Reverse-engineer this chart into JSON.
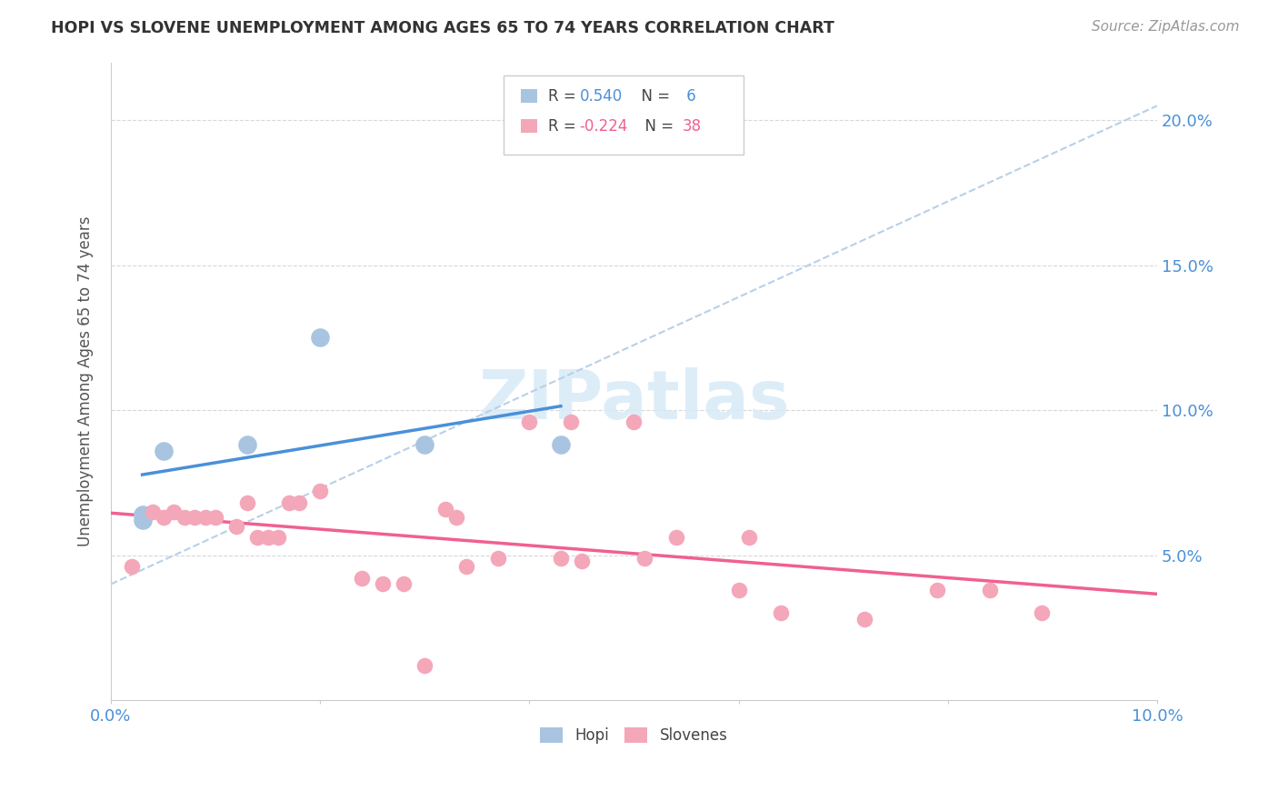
{
  "title": "HOPI VS SLOVENE UNEMPLOYMENT AMONG AGES 65 TO 74 YEARS CORRELATION CHART",
  "source": "Source: ZipAtlas.com",
  "ylabel": "Unemployment Among Ages 65 to 74 years",
  "xlim": [
    0.0,
    0.1
  ],
  "ylim": [
    0.0,
    0.22
  ],
  "x_ticks": [
    0.0,
    0.02,
    0.04,
    0.06,
    0.08,
    0.1
  ],
  "y_ticks": [
    0.0,
    0.05,
    0.1,
    0.15,
    0.2
  ],
  "hopi_color": "#a8c4e0",
  "hopi_edge_color": "#a8c4e0",
  "slovene_color": "#f4a7b9",
  "slovene_edge_color": "#f4a7b9",
  "hopi_line_color": "#4a90d9",
  "slovene_line_color": "#f06090",
  "dashed_line_color": "#b8d0e8",
  "watermark_color": "#d8eaf7",
  "background_color": "#ffffff",
  "grid_color": "#d8d8d8",
  "right_axis_color": "#4a90d9",
  "title_color": "#333333",
  "source_color": "#999999",
  "ylabel_color": "#555555",
  "legend_text_color": "#444444",
  "legend_r_hopi_color": "#4a90d9",
  "legend_r_slovene_color": "#f06090",
  "legend_n_color": "#4a90d9",
  "hopi_x": [
    0.003,
    0.003,
    0.005,
    0.013,
    0.02,
    0.03,
    0.043
  ],
  "hopi_y": [
    0.062,
    0.064,
    0.086,
    0.088,
    0.125,
    0.088,
    0.088
  ],
  "slovene_x": [
    0.002,
    0.004,
    0.005,
    0.006,
    0.007,
    0.008,
    0.009,
    0.01,
    0.012,
    0.013,
    0.014,
    0.015,
    0.016,
    0.017,
    0.018,
    0.02,
    0.024,
    0.026,
    0.028,
    0.03,
    0.032,
    0.033,
    0.034,
    0.037,
    0.04,
    0.043,
    0.044,
    0.045,
    0.05,
    0.051,
    0.054,
    0.06,
    0.061,
    0.064,
    0.072,
    0.079,
    0.084,
    0.089
  ],
  "slovene_y": [
    0.046,
    0.065,
    0.063,
    0.065,
    0.063,
    0.063,
    0.063,
    0.063,
    0.06,
    0.068,
    0.056,
    0.056,
    0.056,
    0.068,
    0.068,
    0.072,
    0.042,
    0.04,
    0.04,
    0.012,
    0.066,
    0.063,
    0.046,
    0.049,
    0.096,
    0.049,
    0.096,
    0.048,
    0.096,
    0.049,
    0.056,
    0.038,
    0.056,
    0.03,
    0.028,
    0.038,
    0.038,
    0.03
  ],
  "watermark": "ZIPatlas",
  "hopi_line_xrange": [
    0.003,
    0.043
  ],
  "dashed_line_xrange": [
    0.0,
    0.1
  ],
  "dashed_line_yrange": [
    0.04,
    0.205
  ]
}
